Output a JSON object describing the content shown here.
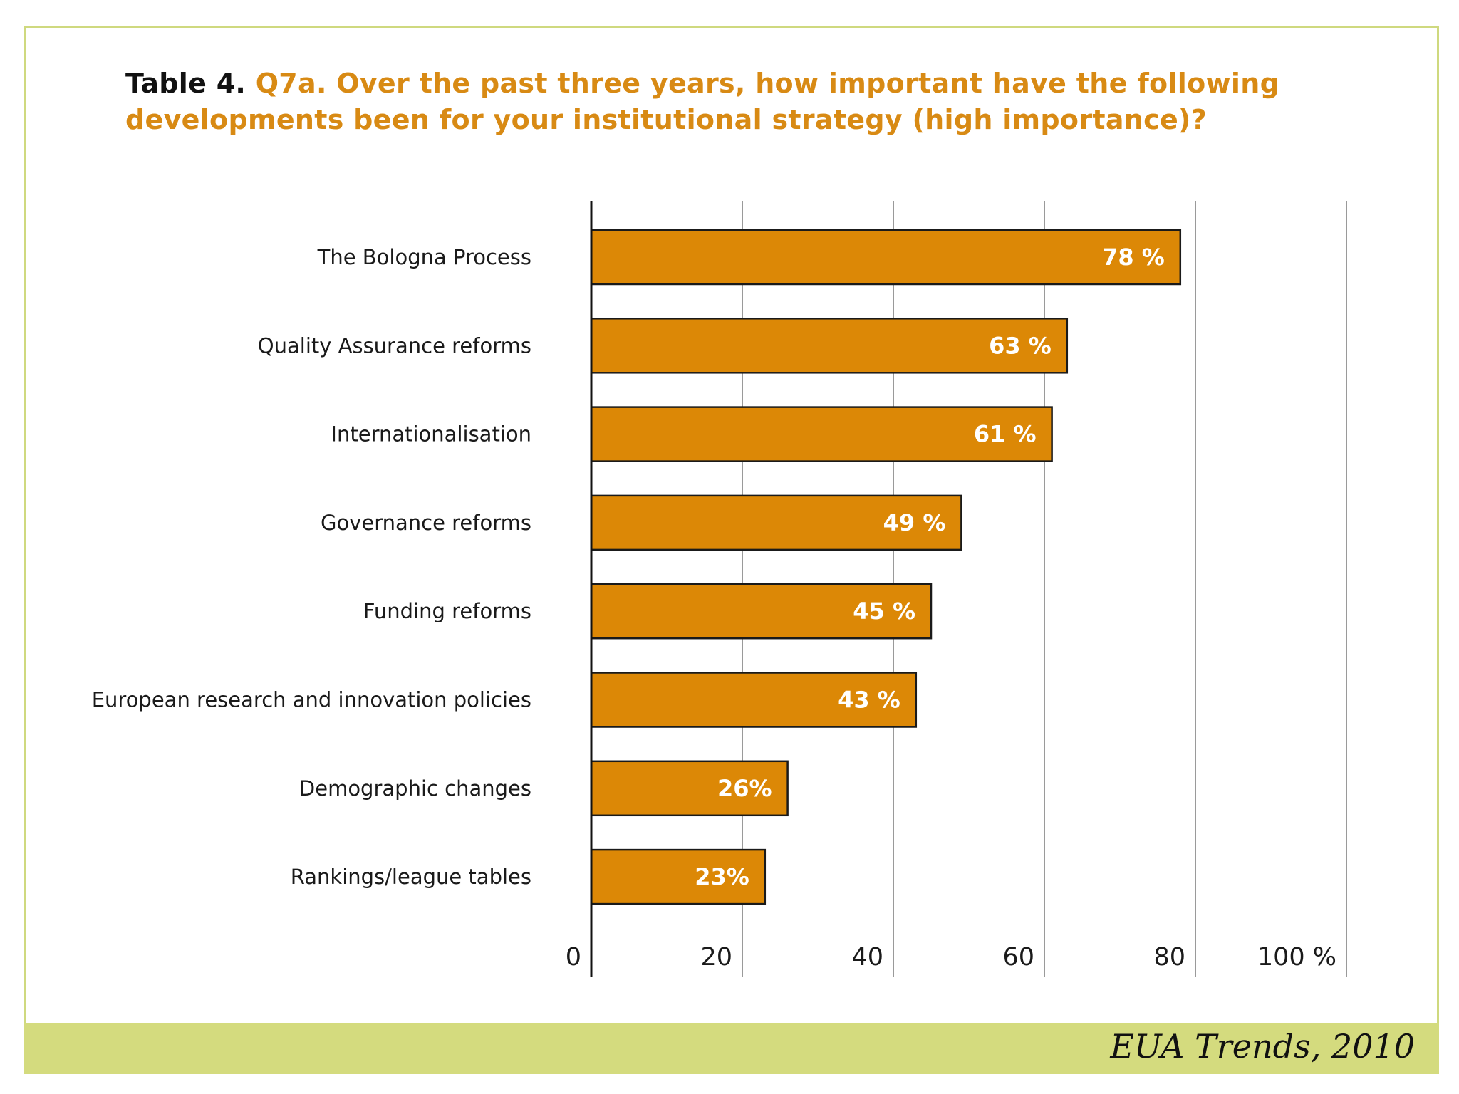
{
  "title": {
    "lead": "Table 4.",
    "question": "Q7a. Over the past three years, how important have the following developments been for your institutional strategy (high importance)?"
  },
  "source": "EUA Trends, 2010",
  "colors": {
    "bar": "#dc8806",
    "bar_border": "#1a1a1a",
    "title": "#d88a14",
    "footer": "#d4db7e",
    "frame": "#cfd97f"
  },
  "chart_data": {
    "type": "bar",
    "orientation": "horizontal",
    "title": "Q7a. Over the past three years, how important have the following developments been for your institutional strategy (high importance)?",
    "xlabel": "",
    "ylabel": "",
    "xlim": [
      0,
      100
    ],
    "grid": true,
    "categories": [
      "The Bologna Process",
      "Quality Assurance reforms",
      "Internationalisation",
      "Governance reforms",
      "Funding reforms",
      "European research and innovation policies",
      "Demographic changes",
      "Rankings/league tables"
    ],
    "values": [
      78,
      63,
      61,
      49,
      45,
      43,
      26,
      23
    ],
    "value_labels": [
      "78 %",
      "63 %",
      "61 %",
      "49 %",
      "45 %",
      "43 %",
      "26%",
      "23%"
    ],
    "ticks": [
      0,
      20,
      40,
      60,
      80,
      100
    ],
    "tick_labels": [
      "0",
      "20",
      "40",
      "60",
      "80",
      "100 %"
    ]
  }
}
